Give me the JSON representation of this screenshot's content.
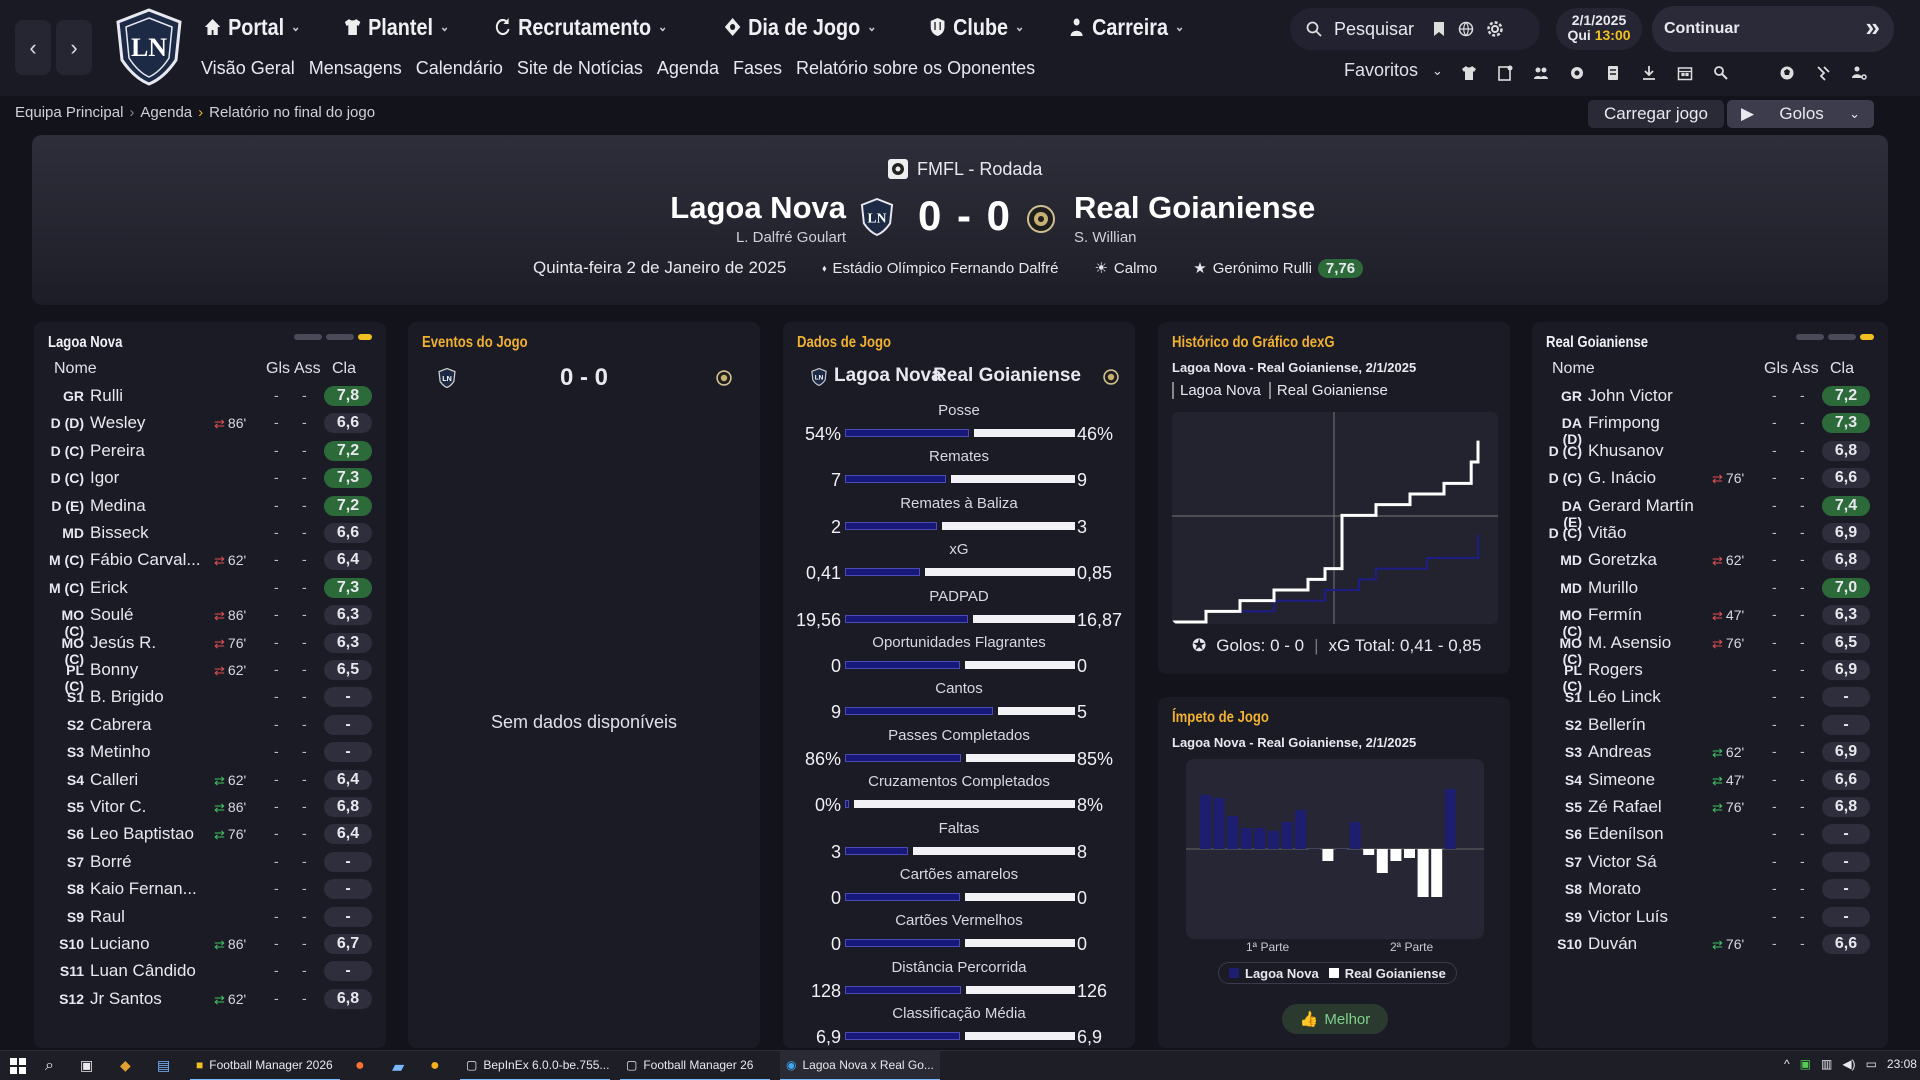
{
  "nav": {
    "main": [
      {
        "label": "Portal",
        "icon": "home-icon"
      },
      {
        "label": "Plantel",
        "icon": "shirt-icon"
      },
      {
        "label": "Recrutamento",
        "icon": "refresh-icon"
      },
      {
        "label": "Dia de Jogo",
        "icon": "tactics-icon"
      },
      {
        "label": "Clube",
        "icon": "shield-icon"
      },
      {
        "label": "Carreira",
        "icon": "person-icon"
      }
    ],
    "sub": [
      "Visão Geral",
      "Mensagens",
      "Calendário",
      "Site de Notícias",
      "Agenda",
      "Fases",
      "Relatório sobre os Oponentes"
    ],
    "search_label": "Pesquisar",
    "date": "2/1/2025",
    "day": "Qui",
    "time": "13:00",
    "continue_label": "Continuar",
    "favorites_label": "Favoritos"
  },
  "breadcrumb": [
    "Equipa Principal",
    "Agenda",
    "Relatório no final do jogo"
  ],
  "actions": {
    "load_match": "Carregar jogo",
    "goals_dropdown": "Golos"
  },
  "match": {
    "competition": "FMFL - Rodada",
    "home": "Lagoa Nova",
    "away": "Real Goianiense",
    "home_manager": "L. Dalfré Goulart",
    "away_manager": "S. Willian",
    "score": "0 - 0",
    "date": "Quinta-feira 2 de Janeiro de 2025",
    "stadium": "Estádio Olímpico Fernando Dalfré",
    "weather": "Calmo",
    "potm": "Gerónimo Rulli",
    "potm_rating": "7,76"
  },
  "home_panel": {
    "title": "Lagoa Nova",
    "col_name": "Nome",
    "col_gls": "Gls",
    "col_ass": "Ass",
    "col_cla": "Cla",
    "players": [
      {
        "pos": "GR",
        "name": "Rulli",
        "sub": "",
        "gls": "-",
        "ass": "-",
        "cla": "7,8",
        "good": true
      },
      {
        "pos": "D (D)",
        "name": "Wesley",
        "sub": "86'",
        "out": true,
        "gls": "-",
        "ass": "-",
        "cla": "6,6",
        "good": false
      },
      {
        "pos": "D (C)",
        "name": "Pereira",
        "sub": "",
        "gls": "-",
        "ass": "-",
        "cla": "7,2",
        "good": true
      },
      {
        "pos": "D (C)",
        "name": "Igor",
        "sub": "",
        "gls": "-",
        "ass": "-",
        "cla": "7,3",
        "good": true
      },
      {
        "pos": "D (E)",
        "name": "Medina",
        "sub": "",
        "gls": "-",
        "ass": "-",
        "cla": "7,2",
        "good": true
      },
      {
        "pos": "MD",
        "name": "Bisseck",
        "sub": "",
        "gls": "-",
        "ass": "-",
        "cla": "6,6",
        "good": false
      },
      {
        "pos": "M (C)",
        "name": "Fábio Carval...",
        "sub": "62'",
        "out": true,
        "gls": "-",
        "ass": "-",
        "cla": "6,4",
        "good": false
      },
      {
        "pos": "M (C)",
        "name": "Erick",
        "sub": "",
        "gls": "-",
        "ass": "-",
        "cla": "7,3",
        "good": true
      },
      {
        "pos": "MO (C)",
        "name": "Soulé",
        "sub": "86'",
        "out": true,
        "gls": "-",
        "ass": "-",
        "cla": "6,3",
        "good": false
      },
      {
        "pos": "MO (C)",
        "name": "Jesús R.",
        "sub": "76'",
        "out": true,
        "gls": "-",
        "ass": "-",
        "cla": "6,3",
        "good": false
      },
      {
        "pos": "PL (C)",
        "name": "Bonny",
        "sub": "62'",
        "out": true,
        "gls": "-",
        "ass": "-",
        "cla": "6,5",
        "good": false
      },
      {
        "pos": "S1",
        "name": "B. Brigido",
        "sub": "",
        "gls": "-",
        "ass": "-",
        "cla": "-",
        "good": false
      },
      {
        "pos": "S2",
        "name": "Cabrera",
        "sub": "",
        "gls": "-",
        "ass": "-",
        "cla": "-",
        "good": false
      },
      {
        "pos": "S3",
        "name": "Metinho",
        "sub": "",
        "gls": "-",
        "ass": "-",
        "cla": "-",
        "good": false
      },
      {
        "pos": "S4",
        "name": "Calleri",
        "sub": "62'",
        "out": false,
        "gls": "-",
        "ass": "-",
        "cla": "6,4",
        "good": false
      },
      {
        "pos": "S5",
        "name": "Vitor C.",
        "sub": "86'",
        "out": false,
        "gls": "-",
        "ass": "-",
        "cla": "6,8",
        "good": false
      },
      {
        "pos": "S6",
        "name": "Leo Baptistao",
        "sub": "76'",
        "out": false,
        "gls": "-",
        "ass": "-",
        "cla": "6,4",
        "good": false
      },
      {
        "pos": "S7",
        "name": "Borré",
        "sub": "",
        "gls": "-",
        "ass": "-",
        "cla": "-",
        "good": false
      },
      {
        "pos": "S8",
        "name": "Kaio Fernan...",
        "sub": "",
        "gls": "-",
        "ass": "-",
        "cla": "-",
        "good": false
      },
      {
        "pos": "S9",
        "name": "Raul",
        "sub": "",
        "gls": "-",
        "ass": "-",
        "cla": "-",
        "good": false
      },
      {
        "pos": "S10",
        "name": "Luciano",
        "sub": "86'",
        "out": false,
        "gls": "-",
        "ass": "-",
        "cla": "6,7",
        "good": false
      },
      {
        "pos": "S11",
        "name": "Luan Cândido",
        "sub": "",
        "gls": "-",
        "ass": "-",
        "cla": "-",
        "good": false
      },
      {
        "pos": "S12",
        "name": "Jr Santos",
        "sub": "62'",
        "out": false,
        "gls": "-",
        "ass": "-",
        "cla": "6,8",
        "good": false
      }
    ]
  },
  "away_panel": {
    "title": "Real Goianiense",
    "col_name": "Nome",
    "col_gls": "Gls",
    "col_ass": "Ass",
    "col_cla": "Cla",
    "players": [
      {
        "pos": "GR",
        "name": "John Victor",
        "sub": "",
        "gls": "-",
        "ass": "-",
        "cla": "7,2",
        "good": true
      },
      {
        "pos": "DA (D)",
        "name": "Frimpong",
        "sub": "",
        "gls": "-",
        "ass": "-",
        "cla": "7,3",
        "good": true
      },
      {
        "pos": "D (C)",
        "name": "Khusanov",
        "sub": "",
        "gls": "-",
        "ass": "-",
        "cla": "6,8",
        "good": false
      },
      {
        "pos": "D (C)",
        "name": "G. Inácio",
        "sub": "76'",
        "out": true,
        "gls": "-",
        "ass": "-",
        "cla": "6,6",
        "good": false
      },
      {
        "pos": "DA (E)",
        "name": "Gerard Martín",
        "sub": "",
        "gls": "-",
        "ass": "-",
        "cla": "7,4",
        "good": true
      },
      {
        "pos": "D (C)",
        "name": "Vitão",
        "sub": "",
        "gls": "-",
        "ass": "-",
        "cla": "6,9",
        "good": false
      },
      {
        "pos": "MD",
        "name": "Goretzka",
        "sub": "62'",
        "out": true,
        "gls": "-",
        "ass": "-",
        "cla": "6,8",
        "good": false
      },
      {
        "pos": "MD",
        "name": "Murillo",
        "sub": "",
        "gls": "-",
        "ass": "-",
        "cla": "7,0",
        "good": true
      },
      {
        "pos": "MO (C)",
        "name": "Fermín",
        "sub": "47'",
        "out": true,
        "gls": "-",
        "ass": "-",
        "cla": "6,3",
        "good": false
      },
      {
        "pos": "MO (C)",
        "name": "M. Asensio",
        "sub": "76'",
        "out": true,
        "gls": "-",
        "ass": "-",
        "cla": "6,5",
        "good": false
      },
      {
        "pos": "PL (C)",
        "name": "Rogers",
        "sub": "",
        "gls": "-",
        "ass": "-",
        "cla": "6,9",
        "good": false
      },
      {
        "pos": "S1",
        "name": "Léo Linck",
        "sub": "",
        "gls": "-",
        "ass": "-",
        "cla": "-",
        "good": false
      },
      {
        "pos": "S2",
        "name": "Bellerín",
        "sub": "",
        "gls": "-",
        "ass": "-",
        "cla": "-",
        "good": false
      },
      {
        "pos": "S3",
        "name": "Andreas",
        "sub": "62'",
        "out": false,
        "gls": "-",
        "ass": "-",
        "cla": "6,9",
        "good": false
      },
      {
        "pos": "S4",
        "name": "Simeone",
        "sub": "47'",
        "out": false,
        "gls": "-",
        "ass": "-",
        "cla": "6,6",
        "good": false
      },
      {
        "pos": "S5",
        "name": "Zé Rafael",
        "sub": "76'",
        "out": false,
        "gls": "-",
        "ass": "-",
        "cla": "6,8",
        "good": false
      },
      {
        "pos": "S6",
        "name": "Edenílson",
        "sub": "",
        "gls": "-",
        "ass": "-",
        "cla": "-",
        "good": false
      },
      {
        "pos": "S7",
        "name": "Victor Sá",
        "sub": "",
        "gls": "-",
        "ass": "-",
        "cla": "-",
        "good": false
      },
      {
        "pos": "S8",
        "name": "Morato",
        "sub": "",
        "gls": "-",
        "ass": "-",
        "cla": "-",
        "good": false
      },
      {
        "pos": "S9",
        "name": "Victor Luís",
        "sub": "",
        "gls": "-",
        "ass": "-",
        "cla": "-",
        "good": false
      },
      {
        "pos": "S10",
        "name": "Duván",
        "sub": "76'",
        "out": false,
        "gls": "-",
        "ass": "-",
        "cla": "6,6",
        "good": false
      }
    ]
  },
  "events": {
    "title": "Eventos do Jogo",
    "score": "0 - 0",
    "empty": "Sem dados disponíveis"
  },
  "stats": {
    "title": "Dados de Jogo",
    "home": "Lagoa Nova",
    "away": "Real Goianiense",
    "rows": [
      {
        "label": "Posse",
        "h": "54%",
        "a": "46%",
        "hv": 54,
        "av": 46
      },
      {
        "label": "Remates",
        "h": "7",
        "a": "9",
        "hv": 7,
        "av": 9
      },
      {
        "label": "Remates à Baliza",
        "h": "2",
        "a": "3",
        "hv": 2,
        "av": 3
      },
      {
        "label": "xG",
        "h": "0,41",
        "a": "0,85",
        "hv": 0.41,
        "av": 0.85
      },
      {
        "label": "PADPAD",
        "h": "19,56",
        "a": "16,87",
        "hv": 19.56,
        "av": 16.87
      },
      {
        "label": "Oportunidades Flagrantes",
        "h": "0",
        "a": "0",
        "hv": 0,
        "av": 0
      },
      {
        "label": "Cantos",
        "h": "9",
        "a": "5",
        "hv": 9,
        "av": 5
      },
      {
        "label": "Passes Completados",
        "h": "86%",
        "a": "85%",
        "hv": 86,
        "av": 85
      },
      {
        "label": "Cruzamentos Completados",
        "h": "0%",
        "a": "8%",
        "hv": 0,
        "av": 8
      },
      {
        "label": "Faltas",
        "h": "3",
        "a": "8",
        "hv": 3,
        "av": 8
      },
      {
        "label": "Cartões amarelos",
        "h": "0",
        "a": "0",
        "hv": 0,
        "av": 0
      },
      {
        "label": "Cartões Vermelhos",
        "h": "0",
        "a": "0",
        "hv": 0,
        "av": 0
      },
      {
        "label": "Distância Percorrida",
        "h": "128",
        "a": "126",
        "hv": 128,
        "av": 126
      },
      {
        "label": "Classificação Média",
        "h": "6,9",
        "a": "6,9",
        "hv": 6.9,
        "av": 6.9
      }
    ]
  },
  "xg_panel": {
    "title": "Histórico do Gráfico dexG",
    "subtitle": "Lagoa Nova - Real Goianiense, 2/1/2025",
    "legend": [
      "Lagoa Nova",
      "Real Goianiense"
    ],
    "goals_label": "Golos: 0 - 0",
    "xg_label": "xG Total: 0,41 - 0,85"
  },
  "momentum_panel": {
    "title": "Ímpeto de Jogo",
    "subtitle": "Lagoa Nova - Real Goianiense, 2/1/2025",
    "half1": "1ª Parte",
    "half2": "2ª Parte",
    "legend": [
      "Lagoa Nova",
      "Real Goianiense"
    ],
    "best_label": "Melhor"
  },
  "chart_data": [
    {
      "type": "line",
      "title": "Histórico do Gráfico dexG",
      "series": [
        {
          "name": "Lagoa Nova",
          "x": [
            0,
            10,
            30,
            45,
            55,
            60,
            75,
            90
          ],
          "y": [
            0,
            0.05,
            0.1,
            0.15,
            0.2,
            0.25,
            0.3,
            0.41
          ]
        },
        {
          "name": "Real Goianiense",
          "x": [
            0,
            10,
            20,
            30,
            40,
            45,
            50,
            60,
            70,
            80,
            88,
            90
          ],
          "y": [
            0,
            0.05,
            0.1,
            0.15,
            0.2,
            0.25,
            0.5,
            0.55,
            0.6,
            0.65,
            0.75,
            0.85
          ]
        }
      ],
      "colors": {
        "Lagoa Nova": "#1e1e8a",
        "Real Goianiense": "#ffffff"
      }
    },
    {
      "type": "bar",
      "title": "Ímpeto de Jogo",
      "values": [
        0.9,
        0.85,
        0.55,
        0.35,
        0.35,
        0.3,
        0.45,
        0.65,
        0.0,
        -0.2,
        0.0,
        0.45,
        -0.1,
        -0.4,
        -0.2,
        -0.15,
        -0.8,
        -0.8,
        1.0
      ],
      "colors": {
        "home": "#1e1e70",
        "away": "#ffffff"
      }
    }
  ],
  "taskbar": {
    "items": [
      "Football Manager 2026",
      "BepInEx 6.0.0-be.755...",
      "Football Manager 26",
      "Lagoa Nova x Real Go..."
    ],
    "clock": "23:08"
  }
}
